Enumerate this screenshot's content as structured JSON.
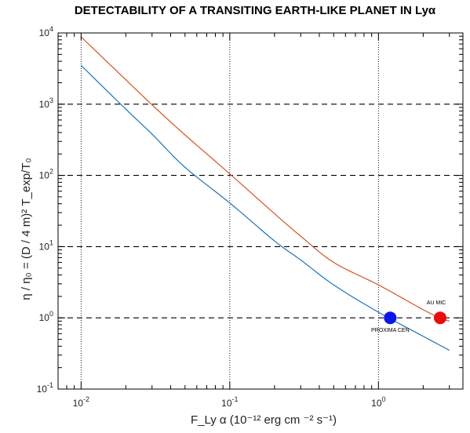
{
  "chart_data": {
    "type": "line",
    "title": "DETECTABILITY OF A TRANSITING EARTH-LIKE PLANET IN Lyα",
    "ylabel": "η / η₀ = (D / 4 m)² T_exp/T₀",
    "xlabel": "F_Ly α (10⁻¹² erg cm ⁻² s⁻¹)",
    "xscale": "log",
    "yscale": "log",
    "xlim": [
      0.007,
      3.7
    ],
    "ylim": [
      0.1,
      10000
    ],
    "x_ticks": [
      {
        "value": 0.01,
        "base": "10",
        "exp": "-2"
      },
      {
        "value": 0.1,
        "base": "10",
        "exp": "-1"
      },
      {
        "value": 1,
        "base": "10",
        "exp": "0"
      }
    ],
    "y_ticks": [
      {
        "value": 0.1,
        "base": "10",
        "exp": "-1"
      },
      {
        "value": 1,
        "base": "10",
        "exp": "0"
      },
      {
        "value": 10,
        "base": "10",
        "exp": "1"
      },
      {
        "value": 100,
        "base": "10",
        "exp": "2"
      },
      {
        "value": 1000,
        "base": "10",
        "exp": "3"
      },
      {
        "value": 10000,
        "base": "10",
        "exp": "4"
      }
    ],
    "vertical_dotted_lines_at_x": [
      0.01,
      0.1,
      1
    ],
    "horizontal_dashed_lines_at_y": [
      1,
      10,
      100,
      1000
    ],
    "series": [
      {
        "color": "#d9531e",
        "x": [
          0.01,
          0.02,
          0.03,
          0.05,
          0.1,
          0.2,
          0.3,
          0.5,
          1.0,
          2.0,
          2.6,
          3.0
        ],
        "y": [
          8800,
          2200,
          980,
          370,
          105,
          29,
          14,
          6.0,
          2.9,
          1.3,
          1.0,
          0.9
        ]
      },
      {
        "color": "#1a74bf",
        "x": [
          0.01,
          0.02,
          0.03,
          0.05,
          0.1,
          0.2,
          0.3,
          0.5,
          1.0,
          2.0,
          3.0
        ],
        "y": [
          3500,
          850,
          380,
          130,
          41,
          12,
          6.5,
          2.9,
          1.2,
          0.55,
          0.35
        ]
      }
    ],
    "points": [
      {
        "name": "PROXIMA CEN",
        "x": 1.2,
        "y": 1.0,
        "color": "#0a16ee"
      },
      {
        "name": "AU MIC",
        "x": 2.6,
        "y": 1.0,
        "color": "#ee0a0a"
      }
    ]
  }
}
